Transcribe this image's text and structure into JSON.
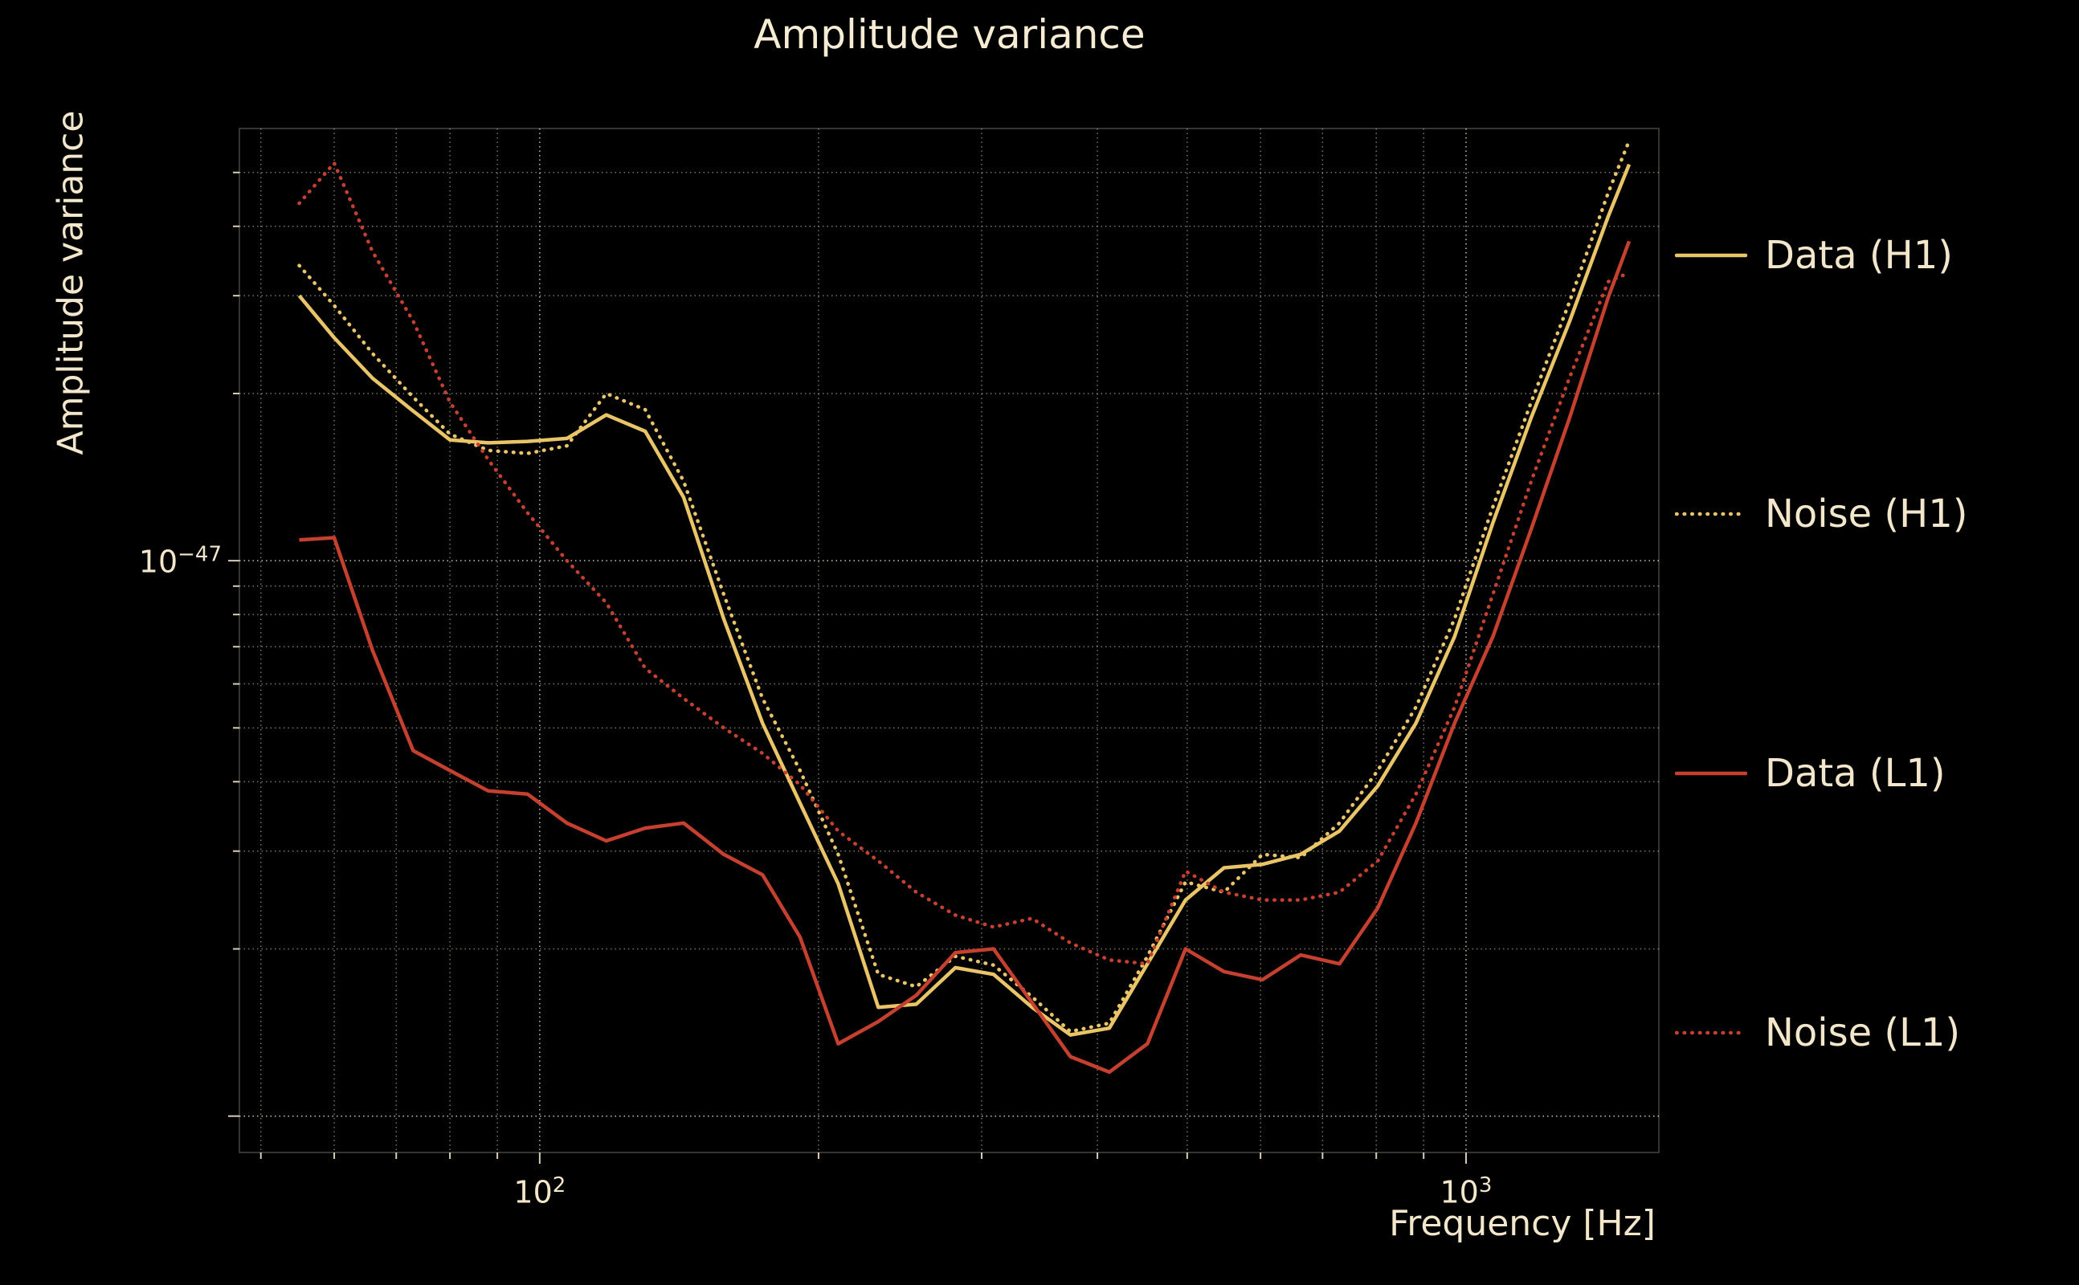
{
  "page": {
    "background": "#000000",
    "text_color": "#f2e6cb",
    "grid_color": "#efe4cc"
  },
  "chart_data": {
    "type": "line",
    "title": "Amplitude variance",
    "xlabel": "Frequency [Hz]",
    "ylabel": "Amplitude variance",
    "xscale": "log",
    "yscale": "log",
    "xlim": [
      47.4,
      1615
    ],
    "ylim": [
      8.6e-49,
      6e-47
    ],
    "grid": true,
    "legend_position": "right",
    "x_major_ticks": [
      {
        "value": 100,
        "base": "10",
        "exp": "2"
      },
      {
        "value": 1000,
        "base": "10",
        "exp": "3"
      }
    ],
    "x_minor_ticks": [
      50,
      60,
      70,
      80,
      90,
      200,
      300,
      400,
      500,
      600,
      700,
      800,
      900
    ],
    "y_labeled_ticks": [
      {
        "value": 1e-47,
        "base": "10",
        "exp": "−47"
      }
    ],
    "y_major_ticks": [
      1e-47,
      1e-48
    ],
    "y_minor_ticks": [
      2e-48,
      3e-48,
      4e-48,
      5e-48,
      6e-48,
      7e-48,
      8e-48,
      9e-48,
      2e-47,
      3e-47,
      4e-47,
      5e-47
    ],
    "x": [
      55,
      60,
      66,
      73,
      80,
      88,
      97,
      107,
      118,
      130,
      143,
      158,
      174,
      191,
      210,
      232,
      255,
      281,
      309,
      340,
      374,
      412,
      453,
      498,
      548,
      603,
      663,
      730,
      803,
      883,
      972,
      1069,
      1176,
      1294,
      1424,
      1500
    ],
    "series": [
      {
        "name": "Data (H1)",
        "color": "#e9c568",
        "style": "solid",
        "values": [
          3e-47,
          2.52e-47,
          2.13e-47,
          1.86e-47,
          1.65e-47,
          1.63e-47,
          1.64e-47,
          1.66e-47,
          1.83e-47,
          1.71e-47,
          1.3e-47,
          7.86e-48,
          5.1e-48,
          3.66e-48,
          2.62e-48,
          1.57e-48,
          1.59e-48,
          1.85e-48,
          1.8e-48,
          1.57e-48,
          1.4e-48,
          1.44e-48,
          1.88e-48,
          2.45e-48,
          2.8e-48,
          2.84e-48,
          2.96e-48,
          3.26e-48,
          3.93e-48,
          5.1e-48,
          7.3e-48,
          1.17e-47,
          1.81e-47,
          2.7e-47,
          4.17e-47,
          5.17e-47
        ]
      },
      {
        "name": "Noise (H1)",
        "color": "#e9c568",
        "style": "dotted",
        "values": [
          3.4e-47,
          2.88e-47,
          2.36e-47,
          1.97e-47,
          1.69e-47,
          1.58e-47,
          1.56e-47,
          1.61e-47,
          2e-47,
          1.87e-47,
          1.39e-47,
          8.7e-48,
          5.65e-48,
          4.19e-48,
          2.96e-48,
          1.8e-48,
          1.71e-48,
          1.94e-48,
          1.87e-48,
          1.64e-48,
          1.42e-48,
          1.47e-48,
          1.94e-48,
          2.64e-48,
          2.53e-48,
          2.96e-48,
          2.92e-48,
          3.37e-48,
          4.19e-48,
          5.45e-48,
          7.86e-48,
          1.25e-47,
          1.93e-47,
          2.93e-47,
          4.6e-47,
          5.7e-47
        ]
      },
      {
        "name": "Data (L1)",
        "color": "#c5402e",
        "style": "solid",
        "values": [
          1.09e-47,
          1.1e-47,
          6.89e-48,
          4.55e-48,
          4.19e-48,
          3.85e-48,
          3.8e-48,
          3.37e-48,
          3.13e-48,
          3.3e-48,
          3.37e-48,
          2.96e-48,
          2.72e-48,
          2.1e-48,
          1.35e-48,
          1.48e-48,
          1.65e-48,
          1.97e-48,
          2e-48,
          1.6e-48,
          1.28e-48,
          1.2e-48,
          1.35e-48,
          2e-48,
          1.82e-48,
          1.76e-48,
          1.95e-48,
          1.88e-48,
          2.37e-48,
          3.37e-48,
          5.1e-48,
          7.3e-48,
          1.14e-47,
          1.81e-47,
          2.98e-47,
          3.76e-47
        ]
      },
      {
        "name": "Noise (L1)",
        "color": "#c5402e",
        "style": "dotted",
        "values": [
          4.4e-47,
          5.2e-47,
          3.6e-47,
          2.7e-47,
          1.93e-47,
          1.52e-47,
          1.22e-47,
          1e-47,
          8.4e-48,
          6.4e-48,
          5.65e-48,
          5e-48,
          4.5e-48,
          3.95e-48,
          3.26e-48,
          2.88e-48,
          2.53e-48,
          2.3e-48,
          2.19e-48,
          2.27e-48,
          2.05e-48,
          1.91e-48,
          1.88e-48,
          2.76e-48,
          2.53e-48,
          2.45e-48,
          2.45e-48,
          2.53e-48,
          2.88e-48,
          3.8e-48,
          5.45e-48,
          8.7e-48,
          1.39e-47,
          2.14e-47,
          3.18e-47,
          3.3e-47
        ]
      }
    ]
  }
}
